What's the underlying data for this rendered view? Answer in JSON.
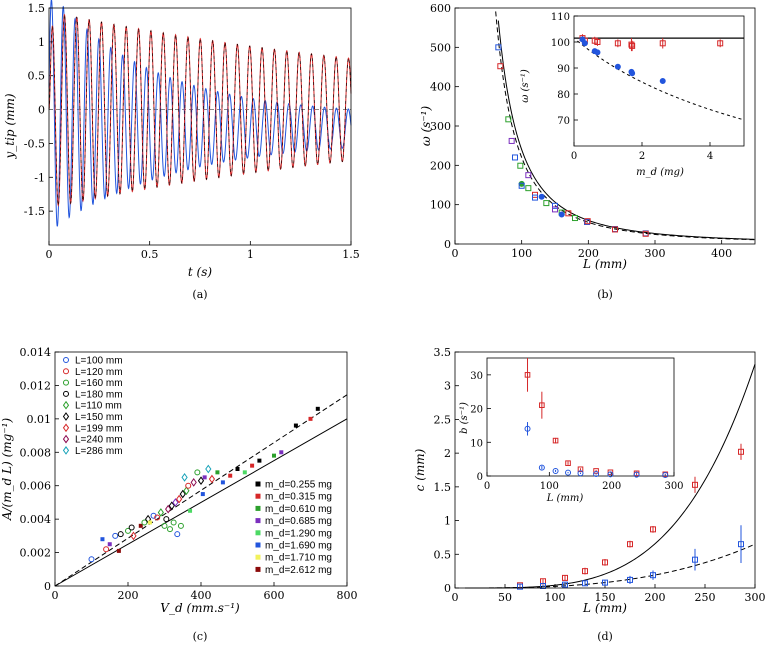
{
  "chart_data": [
    {
      "panel": "(a)",
      "type": "line",
      "caption": "(a)",
      "xlabel": "t (s)",
      "ylabel": "y_tip (mm)",
      "xlim": [
        0,
        1.5
      ],
      "ylim": [
        -2,
        1.5
      ],
      "xticks": [
        "0",
        "0.5",
        "1",
        "1.5"
      ],
      "yticks": [
        "-1.5",
        "-1",
        "-0.5",
        "0",
        "0.5",
        "1",
        "1.5"
      ],
      "series": [
        {
          "color": "#d62728",
          "amplitude_start": 1.4,
          "amplitude_end": 0.75,
          "frequency_hz": 16.3,
          "offset": 0.0
        },
        {
          "color": "#2255dd",
          "amplitude_start": 1.1,
          "amplitude_end": 0.2,
          "frequency_hz": 16.3,
          "offset_end": -0.3
        },
        {
          "color": "#000000",
          "dashed": true,
          "amplitude_start": 1.4,
          "amplitude_end": 0.75,
          "frequency_hz": 16.3
        }
      ]
    },
    {
      "panel": "(b)",
      "type": "scatter",
      "caption": "(b)",
      "xlabel": "L (mm)",
      "ylabel": "ω (s⁻¹)",
      "xlim": [
        0,
        450
      ],
      "ylim": [
        0,
        600
      ],
      "xticks": [
        "0",
        "100",
        "200",
        "300",
        "400"
      ],
      "yticks": [
        "0",
        "100",
        "200",
        "300",
        "400",
        "500",
        "600"
      ],
      "points": [
        {
          "x": 65,
          "y": 500,
          "color": "#2255dd",
          "m": "sq"
        },
        {
          "x": 68,
          "y": 452,
          "color": "#d62728",
          "m": "sq"
        },
        {
          "x": 80,
          "y": 317,
          "color": "#2ca02c",
          "m": "sq"
        },
        {
          "x": 85,
          "y": 262,
          "color": "#7b2fbe",
          "m": "sq"
        },
        {
          "x": 90,
          "y": 220,
          "color": "#2255dd",
          "m": "sq"
        },
        {
          "x": 98,
          "y": 199,
          "color": "#2ca02c",
          "m": "sq"
        },
        {
          "x": 100,
          "y": 153,
          "color": "#2ca02c",
          "m": "o"
        },
        {
          "x": 100,
          "y": 148,
          "color": "#2255dd",
          "m": "sq"
        },
        {
          "x": 110,
          "y": 175,
          "color": "#7b2fbe",
          "m": "sq"
        },
        {
          "x": 110,
          "y": 142,
          "color": "#2ca02c",
          "m": "sq"
        },
        {
          "x": 120,
          "y": 125,
          "color": "#d62728",
          "m": "sq"
        },
        {
          "x": 120,
          "y": 118,
          "color": "#2255dd",
          "m": "sq"
        },
        {
          "x": 130,
          "y": 120,
          "color": "#2255dd",
          "m": "o"
        },
        {
          "x": 137,
          "y": 104,
          "color": "#2ca02c",
          "m": "sq"
        },
        {
          "x": 150,
          "y": 97,
          "color": "#2255dd",
          "m": "sq"
        },
        {
          "x": 150,
          "y": 88,
          "color": "#7b2fbe",
          "m": "sq"
        },
        {
          "x": 160,
          "y": 80,
          "color": "#2ca02c",
          "m": "sq"
        },
        {
          "x": 160,
          "y": 75,
          "color": "#2255dd",
          "m": "o"
        },
        {
          "x": 170,
          "y": 78,
          "color": "#d62728",
          "m": "sq"
        },
        {
          "x": 180,
          "y": 66,
          "color": "#2ca02c",
          "m": "sq"
        },
        {
          "x": 198,
          "y": 56,
          "color": "#2255dd",
          "m": "sq"
        },
        {
          "x": 199,
          "y": 58,
          "color": "#d62728",
          "m": "sq"
        },
        {
          "x": 240,
          "y": 38,
          "color": "#2255dd",
          "m": "sq"
        },
        {
          "x": 240,
          "y": 37,
          "color": "#d62728",
          "m": "sq"
        },
        {
          "x": 286,
          "y": 27,
          "color": "#2255dd",
          "m": "sq"
        },
        {
          "x": 286,
          "y": 26,
          "color": "#d62728",
          "m": "sq"
        }
      ],
      "curves": {
        "solid_k": 2400000,
        "dashed_k": 2200000
      },
      "inset": {
        "xlabel": "m_d (mg)",
        "ylabel": "ω (s⁻¹)",
        "xlim": [
          0,
          5
        ],
        "ylim": [
          60,
          110
        ],
        "xticks": [
          "0",
          "2",
          "4"
        ],
        "yticks": [
          "70",
          "80",
          "90",
          "100",
          "110"
        ],
        "hline": 101.5,
        "red_points": [
          {
            "x": 0.25,
            "y": 101.5,
            "e": 1.5
          },
          {
            "x": 0.32,
            "y": 100.5,
            "e": 2.0
          },
          {
            "x": 0.61,
            "y": 100.5,
            "e": 1.5
          },
          {
            "x": 0.69,
            "y": 100.0,
            "e": 1.5
          },
          {
            "x": 1.29,
            "y": 99.5,
            "e": 1.5
          },
          {
            "x": 1.69,
            "y": 99.0,
            "e": 2.5
          },
          {
            "x": 1.71,
            "y": 98.5,
            "e": 2.0
          },
          {
            "x": 2.61,
            "y": 99.5,
            "e": 2.0
          },
          {
            "x": 4.3,
            "y": 99.5,
            "e": 1.5
          }
        ],
        "blue_points": [
          {
            "x": 0.25,
            "y": 101.0
          },
          {
            "x": 0.32,
            "y": 99.5
          },
          {
            "x": 0.61,
            "y": 96.5
          },
          {
            "x": 0.69,
            "y": 96.0
          },
          {
            "x": 1.29,
            "y": 90.5
          },
          {
            "x": 1.69,
            "y": 88.5
          },
          {
            "x": 1.71,
            "y": 88.0
          },
          {
            "x": 2.61,
            "y": 85.0
          }
        ]
      }
    },
    {
      "panel": "(c)",
      "type": "scatter",
      "caption": "(c)",
      "xlabel": "V_d (mm.s⁻¹)",
      "ylabel": "A/(m_d L) (mg⁻¹)",
      "xlim": [
        0,
        800
      ],
      "ylim": [
        0,
        0.014
      ],
      "xticks": [
        "0",
        "200",
        "400",
        "600",
        "800"
      ],
      "yticks": [
        "0",
        "0.002",
        "0.004",
        "0.006",
        "0.008",
        "0.01",
        "0.012",
        "0.014"
      ],
      "legend_L": [
        {
          "label": "L=100 mm",
          "color": "#2255dd",
          "m": "o"
        },
        {
          "label": "L=120 mm",
          "color": "#d62728",
          "m": "o"
        },
        {
          "label": "L=160 mm",
          "color": "#2ca02c",
          "m": "o"
        },
        {
          "label": "L=180 mm",
          "color": "#000000",
          "m": "o"
        },
        {
          "label": "L=110 mm",
          "color": "#2ca02c",
          "m": "d"
        },
        {
          "label": "L=150 mm",
          "color": "#000000",
          "m": "d"
        },
        {
          "label": "L=199 mm",
          "color": "#d62728",
          "m": "d"
        },
        {
          "label": "L=240 mm",
          "color": "#8b0a50",
          "m": "d"
        },
        {
          "label": "L=286 mm",
          "color": "#17a2b8",
          "m": "d"
        }
      ],
      "legend_md": [
        {
          "label": "m_d=0.255 mg",
          "color": "#000000"
        },
        {
          "label": "m_d=0.315 mg",
          "color": "#d62728"
        },
        {
          "label": "m_d=0.610 mg",
          "color": "#2ca02c"
        },
        {
          "label": "m_d=0.685 mg",
          "color": "#7b2fbe"
        },
        {
          "label": "m_d=1.290 mg",
          "color": "#4cd964"
        },
        {
          "label": "m_d=1.690 mg",
          "color": "#2255dd"
        },
        {
          "label": "m_d=1.710 mg",
          "color": "#f2f25c"
        },
        {
          "label": "m_d=2.612 mg",
          "color": "#8b0a0a"
        }
      ],
      "lines": {
        "solid_slope": 1.25e-05,
        "dashed_slope": 1.43e-05
      },
      "points": [
        {
          "x": 100,
          "y": 0.0016,
          "c": "#2255dd",
          "m": "o"
        },
        {
          "x": 130,
          "y": 0.0028,
          "c": "#2255dd",
          "m": "sq"
        },
        {
          "x": 140,
          "y": 0.0022,
          "c": "#d62728",
          "m": "o"
        },
        {
          "x": 150,
          "y": 0.0025,
          "c": "#7b2fbe",
          "m": "sq"
        },
        {
          "x": 165,
          "y": 0.003,
          "c": "#2255dd",
          "m": "o"
        },
        {
          "x": 175,
          "y": 0.0021,
          "c": "#8b0a0a",
          "m": "sq"
        },
        {
          "x": 180,
          "y": 0.0031,
          "c": "#000000",
          "m": "o"
        },
        {
          "x": 200,
          "y": 0.0033,
          "c": "#2ca02c",
          "m": "o"
        },
        {
          "x": 210,
          "y": 0.0035,
          "c": "#000000",
          "m": "o"
        },
        {
          "x": 215,
          "y": 0.003,
          "c": "#d62728",
          "m": "d"
        },
        {
          "x": 235,
          "y": 0.0036,
          "c": "#8b0a0a",
          "m": "sq"
        },
        {
          "x": 245,
          "y": 0.0038,
          "c": "#2ca02c",
          "m": "o"
        },
        {
          "x": 255,
          "y": 0.004,
          "c": "#000000",
          "m": "d"
        },
        {
          "x": 260,
          "y": 0.0038,
          "c": "#f2f25c",
          "m": "sq"
        },
        {
          "x": 270,
          "y": 0.0042,
          "c": "#2255dd",
          "m": "o"
        },
        {
          "x": 280,
          "y": 0.0041,
          "c": "#d62728",
          "m": "o"
        },
        {
          "x": 290,
          "y": 0.0044,
          "c": "#2ca02c",
          "m": "d"
        },
        {
          "x": 300,
          "y": 0.0036,
          "c": "#2ca02c",
          "m": "o"
        },
        {
          "x": 305,
          "y": 0.004,
          "c": "#000000",
          "m": "o"
        },
        {
          "x": 310,
          "y": 0.0046,
          "c": "#8b0a50",
          "m": "d"
        },
        {
          "x": 315,
          "y": 0.0034,
          "c": "#2ca02c",
          "m": "o"
        },
        {
          "x": 320,
          "y": 0.0048,
          "c": "#000000",
          "m": "d"
        },
        {
          "x": 325,
          "y": 0.0038,
          "c": "#2ca02c",
          "m": "o"
        },
        {
          "x": 330,
          "y": 0.005,
          "c": "#7b2fbe",
          "m": "d"
        },
        {
          "x": 335,
          "y": 0.0031,
          "c": "#2255dd",
          "m": "o"
        },
        {
          "x": 340,
          "y": 0.0052,
          "c": "#d62728",
          "m": "d"
        },
        {
          "x": 345,
          "y": 0.0036,
          "c": "#2ca02c",
          "m": "o"
        },
        {
          "x": 350,
          "y": 0.0055,
          "c": "#000000",
          "m": "d"
        },
        {
          "x": 355,
          "y": 0.0065,
          "c": "#17a2b8",
          "m": "d"
        },
        {
          "x": 360,
          "y": 0.0057,
          "c": "#2ca02c",
          "m": "d"
        },
        {
          "x": 365,
          "y": 0.006,
          "c": "#d62728",
          "m": "o"
        },
        {
          "x": 370,
          "y": 0.0045,
          "c": "#4cd964",
          "m": "sq"
        },
        {
          "x": 380,
          "y": 0.0062,
          "c": "#8b0a50",
          "m": "d"
        },
        {
          "x": 390,
          "y": 0.0068,
          "c": "#2ca02c",
          "m": "o"
        },
        {
          "x": 400,
          "y": 0.0063,
          "c": "#000000",
          "m": "d"
        },
        {
          "x": 405,
          "y": 0.0055,
          "c": "#2255dd",
          "m": "sq"
        },
        {
          "x": 410,
          "y": 0.0065,
          "c": "#7b2fbe",
          "m": "sq"
        },
        {
          "x": 420,
          "y": 0.007,
          "c": "#17a2b8",
          "m": "d"
        },
        {
          "x": 430,
          "y": 0.0064,
          "c": "#d62728",
          "m": "d"
        },
        {
          "x": 445,
          "y": 0.0068,
          "c": "#2ca02c",
          "m": "sq"
        },
        {
          "x": 460,
          "y": 0.0062,
          "c": "#2255dd",
          "m": "sq"
        },
        {
          "x": 480,
          "y": 0.0066,
          "c": "#d62728",
          "m": "sq"
        },
        {
          "x": 500,
          "y": 0.007,
          "c": "#000000",
          "m": "sq"
        },
        {
          "x": 520,
          "y": 0.0068,
          "c": "#4cd964",
          "m": "sq"
        },
        {
          "x": 540,
          "y": 0.0072,
          "c": "#d62728",
          "m": "sq"
        },
        {
          "x": 560,
          "y": 0.0075,
          "c": "#000000",
          "m": "sq"
        },
        {
          "x": 600,
          "y": 0.0078,
          "c": "#2ca02c",
          "m": "sq"
        },
        {
          "x": 620,
          "y": 0.008,
          "c": "#7b2fbe",
          "m": "sq"
        },
        {
          "x": 660,
          "y": 0.0096,
          "c": "#000000",
          "m": "sq"
        },
        {
          "x": 700,
          "y": 0.01,
          "c": "#d62728",
          "m": "sq"
        },
        {
          "x": 720,
          "y": 0.0106,
          "c": "#000000",
          "m": "sq"
        }
      ]
    },
    {
      "panel": "(d)",
      "type": "scatter",
      "caption": "(d)",
      "xlabel": "L (mm)",
      "ylabel": "c (mm)",
      "xlim": [
        0,
        300
      ],
      "ylim": [
        0,
        3.5
      ],
      "xticks": [
        "0",
        "50",
        "100",
        "150",
        "200",
        "250",
        "300"
      ],
      "yticks": [
        "0",
        "0.5",
        "1",
        "1.5",
        "2",
        "2.5",
        "3",
        "3.5"
      ],
      "red_points": [
        {
          "x": 65,
          "y": 0.04,
          "e": 0.02
        },
        {
          "x": 88,
          "y": 0.1,
          "e": 0.03
        },
        {
          "x": 110,
          "y": 0.15,
          "e": 0.04
        },
        {
          "x": 130,
          "y": 0.25,
          "e": 0.05
        },
        {
          "x": 150,
          "y": 0.38,
          "e": 0.05
        },
        {
          "x": 175,
          "y": 0.65,
          "e": 0.05
        },
        {
          "x": 198,
          "y": 0.87,
          "e": 0.05
        },
        {
          "x": 240,
          "y": 1.53,
          "e": 0.12
        },
        {
          "x": 286,
          "y": 2.02,
          "e": 0.12
        }
      ],
      "blue_points": [
        {
          "x": 65,
          "y": 0.02,
          "e": 0.02
        },
        {
          "x": 88,
          "y": 0.03,
          "e": 0.02
        },
        {
          "x": 110,
          "y": 0.05,
          "e": 0.03
        },
        {
          "x": 130,
          "y": 0.07,
          "e": 0.04
        },
        {
          "x": 150,
          "y": 0.08,
          "e": 0.04
        },
        {
          "x": 175,
          "y": 0.12,
          "e": 0.06
        },
        {
          "x": 198,
          "y": 0.19,
          "e": 0.07
        },
        {
          "x": 240,
          "y": 0.42,
          "e": 0.16
        },
        {
          "x": 286,
          "y": 0.65,
          "e": 0.28
        }
      ],
      "inset": {
        "xlabel": "L (mm)",
        "ylabel": "b (s⁻¹)",
        "xlim": [
          0,
          300
        ],
        "ylim": [
          0,
          35
        ],
        "xticks": [
          "0",
          "100",
          "200",
          "300"
        ],
        "yticks": [
          "0",
          "10",
          "20",
          "30"
        ],
        "red_points": [
          {
            "x": 65,
            "y": 30.0,
            "e": 5
          },
          {
            "x": 88,
            "y": 21.0,
            "e": 4
          },
          {
            "x": 110,
            "y": 10.5,
            "e": 0.8
          },
          {
            "x": 130,
            "y": 3.8,
            "e": 0.5
          },
          {
            "x": 150,
            "y": 2.0,
            "e": 0.3
          },
          {
            "x": 175,
            "y": 1.5,
            "e": 0.3
          },
          {
            "x": 198,
            "y": 1.1,
            "e": 0.2
          },
          {
            "x": 240,
            "y": 0.8,
            "e": 0.2
          },
          {
            "x": 286,
            "y": 0.5,
            "e": 0.2
          }
        ],
        "blue_points": [
          {
            "x": 65,
            "y": 14.0,
            "e": 2
          },
          {
            "x": 88,
            "y": 2.5,
            "e": 0.5
          },
          {
            "x": 110,
            "y": 1.5,
            "e": 0.3
          },
          {
            "x": 130,
            "y": 1.0,
            "e": 0.2
          },
          {
            "x": 150,
            "y": 0.8,
            "e": 0.2
          },
          {
            "x": 175,
            "y": 0.6,
            "e": 0.2
          },
          {
            "x": 198,
            "y": 0.5,
            "e": 0.2
          },
          {
            "x": 240,
            "y": 0.4,
            "e": 0.2
          },
          {
            "x": 286,
            "y": 0.3,
            "e": 0.2
          }
        ]
      }
    }
  ]
}
